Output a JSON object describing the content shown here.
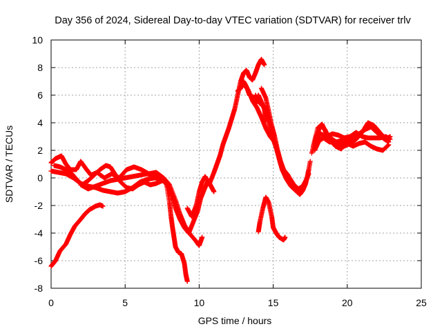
{
  "chart_data": {
    "type": "scatter",
    "title": "Day 356 of 2024, Sidereal Day-to-day VTEC variation (SDTVAR) for receiver trlv",
    "xlabel": "GPS time / hours",
    "ylabel": "SDTVAR / TECUs",
    "xlim": [
      0,
      25
    ],
    "ylim": [
      -8,
      10
    ],
    "xticks": [
      0,
      5,
      10,
      15,
      20,
      25
    ],
    "yticks": [
      -8,
      -6,
      -4,
      -2,
      0,
      2,
      4,
      6,
      8,
      10
    ],
    "grid": true,
    "marker": "plus",
    "color": "#ff0000",
    "series": [
      {
        "points": [
          [
            0.0,
            -6.4
          ],
          [
            0.3,
            -6.0
          ],
          [
            0.6,
            -5.3
          ],
          [
            1.0,
            -4.8
          ],
          [
            1.3,
            -4.1
          ],
          [
            1.6,
            -3.5
          ],
          [
            2.0,
            -3.0
          ],
          [
            2.3,
            -2.6
          ],
          [
            2.6,
            -2.3
          ],
          [
            3.0,
            -2.05
          ],
          [
            3.3,
            -1.95
          ],
          [
            3.5,
            -2.05
          ]
        ]
      },
      {
        "points": [
          [
            0.0,
            1.1
          ],
          [
            0.3,
            1.4
          ],
          [
            0.7,
            1.6
          ],
          [
            1.0,
            1.0
          ],
          [
            1.3,
            0.6
          ],
          [
            1.7,
            0.6
          ],
          [
            2.0,
            1.2
          ],
          [
            2.4,
            0.6
          ],
          [
            2.7,
            0.2
          ],
          [
            3.1,
            0.4
          ],
          [
            3.6,
            0.0
          ],
          [
            4.1,
            0.3
          ],
          [
            4.6,
            0.0
          ],
          [
            5.1,
            0.6
          ],
          [
            5.6,
            0.8
          ],
          [
            6.1,
            0.6
          ],
          [
            6.6,
            0.3
          ],
          [
            7.1,
            0.4
          ],
          [
            7.6,
            0.0
          ],
          [
            8.0,
            -0.5
          ],
          [
            8.4,
            -1.6
          ],
          [
            8.7,
            -2.6
          ],
          [
            9.0,
            -3.4
          ],
          [
            9.4,
            -4.1
          ],
          [
            9.8,
            -4.6
          ],
          [
            10.0,
            -4.9
          ],
          [
            10.2,
            -4.3
          ]
        ]
      },
      {
        "points": [
          [
            0.0,
            0.5
          ],
          [
            0.5,
            0.4
          ],
          [
            1.0,
            0.3
          ],
          [
            1.5,
            0.0
          ],
          [
            2.0,
            -0.4
          ],
          [
            2.5,
            -0.6
          ],
          [
            3.0,
            -0.7
          ],
          [
            3.5,
            -0.9
          ],
          [
            4.0,
            -1.0
          ],
          [
            4.5,
            -1.1
          ],
          [
            5.0,
            -1.0
          ],
          [
            5.5,
            -0.7
          ],
          [
            6.0,
            -0.3
          ],
          [
            6.5,
            -0.1
          ],
          [
            7.0,
            0.0
          ],
          [
            7.5,
            -0.1
          ],
          [
            7.8,
            -0.4
          ],
          [
            8.1,
            -1.2
          ],
          [
            8.4,
            -2.2
          ],
          [
            8.7,
            -3.0
          ],
          [
            9.0,
            -3.6
          ],
          [
            9.3,
            -4.0
          ],
          [
            9.6,
            -3.2
          ],
          [
            9.9,
            -2.4
          ],
          [
            10.1,
            -1.5
          ],
          [
            10.4,
            -0.7
          ],
          [
            10.6,
            -0.2
          ],
          [
            10.8,
            -0.6
          ],
          [
            11.0,
            -1.0
          ]
        ]
      },
      {
        "points": [
          [
            0.2,
            0.9
          ],
          [
            0.6,
            0.8
          ],
          [
            1.0,
            0.6
          ],
          [
            1.4,
            0.3
          ],
          [
            1.8,
            -0.2
          ],
          [
            2.1,
            -0.5
          ],
          [
            2.5,
            -0.2
          ],
          [
            2.9,
            0.2
          ],
          [
            3.3,
            0.6
          ],
          [
            3.7,
            0.9
          ],
          [
            4.0,
            0.8
          ],
          [
            4.3,
            0.3
          ],
          [
            4.7,
            -0.3
          ],
          [
            5.1,
            -0.7
          ],
          [
            5.5,
            -0.8
          ],
          [
            5.9,
            -0.5
          ],
          [
            6.3,
            -0.3
          ],
          [
            6.7,
            -0.5
          ],
          [
            7.1,
            -0.4
          ],
          [
            7.5,
            -0.2
          ],
          [
            7.8,
            -0.3
          ]
        ]
      },
      {
        "points": [
          [
            2.0,
            -0.5
          ],
          [
            2.5,
            -0.8
          ],
          [
            3.0,
            -0.6
          ],
          [
            3.5,
            -0.4
          ],
          [
            4.0,
            -0.2
          ],
          [
            4.5,
            -0.1
          ],
          [
            5.0,
            0.0
          ],
          [
            5.5,
            0.1
          ],
          [
            6.0,
            0.2
          ],
          [
            6.5,
            0.3
          ],
          [
            7.0,
            0.2
          ],
          [
            7.5,
            0.0
          ],
          [
            7.8,
            -0.5
          ],
          [
            8.0,
            -1.8
          ],
          [
            8.1,
            -2.8
          ],
          [
            8.2,
            -3.6
          ],
          [
            8.3,
            -4.3
          ],
          [
            8.4,
            -5.0
          ],
          [
            8.6,
            -5.4
          ],
          [
            8.8,
            -5.5
          ],
          [
            9.0,
            -6.2
          ],
          [
            9.1,
            -7.0
          ],
          [
            9.2,
            -7.5
          ]
        ]
      },
      {
        "points": [
          [
            9.2,
            -2.2
          ],
          [
            9.5,
            -2.8
          ],
          [
            9.8,
            -2.0
          ],
          [
            10.0,
            -1.0
          ],
          [
            10.2,
            -0.3
          ],
          [
            10.4,
            0.1
          ],
          [
            10.7,
            -0.4
          ],
          [
            11.0,
            0.4
          ],
          [
            11.2,
            1.0
          ],
          [
            11.4,
            1.6
          ],
          [
            11.6,
            2.4
          ],
          [
            11.8,
            3.0
          ],
          [
            12.0,
            3.6
          ],
          [
            12.2,
            4.3
          ],
          [
            12.4,
            5.0
          ],
          [
            12.6,
            6.0
          ],
          [
            12.8,
            7.0
          ],
          [
            13.0,
            7.6
          ],
          [
            13.2,
            7.8
          ],
          [
            13.4,
            7.3
          ],
          [
            13.6,
            7.1
          ],
          [
            13.8,
            7.6
          ],
          [
            14.0,
            8.2
          ],
          [
            14.2,
            8.6
          ],
          [
            14.4,
            8.2
          ]
        ]
      },
      {
        "points": [
          [
            12.6,
            6.3
          ],
          [
            12.8,
            6.5
          ],
          [
            13.0,
            7.0
          ],
          [
            13.2,
            6.6
          ],
          [
            13.4,
            6.0
          ],
          [
            13.6,
            5.9
          ],
          [
            13.8,
            5.4
          ],
          [
            14.0,
            6.0
          ],
          [
            14.2,
            5.5
          ],
          [
            14.4,
            5.0
          ],
          [
            14.5,
            4.2
          ]
        ]
      },
      {
        "points": [
          [
            13.0,
            6.8
          ],
          [
            13.3,
            6.4
          ],
          [
            13.6,
            5.6
          ],
          [
            13.9,
            5.1
          ],
          [
            14.2,
            4.4
          ],
          [
            14.5,
            3.6
          ],
          [
            14.8,
            3.0
          ],
          [
            15.1,
            2.6
          ],
          [
            15.3,
            1.8
          ],
          [
            15.5,
            1.0
          ],
          [
            15.8,
            0.4
          ],
          [
            16.1,
            0.0
          ],
          [
            16.4,
            -0.5
          ],
          [
            16.7,
            -0.8
          ],
          [
            17.0,
            -0.6
          ],
          [
            17.3,
            0.0
          ],
          [
            17.5,
            1.2
          ]
        ]
      },
      {
        "points": [
          [
            14.2,
            6.5
          ],
          [
            14.5,
            5.8
          ],
          [
            14.7,
            4.8
          ],
          [
            14.9,
            3.8
          ],
          [
            15.1,
            3.0
          ],
          [
            15.3,
            2.0
          ],
          [
            15.5,
            1.2
          ],
          [
            15.7,
            0.6
          ],
          [
            16.0,
            0.2
          ],
          [
            16.2,
            -0.3
          ],
          [
            16.5,
            -0.8
          ],
          [
            16.8,
            -1.0
          ],
          [
            17.1,
            -0.5
          ],
          [
            17.4,
            0.3
          ]
        ]
      },
      {
        "points": [
          [
            13.8,
            6.0
          ],
          [
            14.1,
            5.4
          ],
          [
            14.4,
            5.2
          ],
          [
            14.6,
            4.5
          ],
          [
            14.8,
            3.6
          ],
          [
            15.0,
            2.8
          ],
          [
            15.2,
            2.2
          ],
          [
            15.4,
            1.4
          ],
          [
            15.6,
            0.6
          ],
          [
            15.9,
            -0.1
          ],
          [
            16.2,
            -0.6
          ],
          [
            16.5,
            -0.9
          ],
          [
            16.8,
            -1.2
          ],
          [
            17.0,
            -0.9
          ],
          [
            17.2,
            -0.4
          ],
          [
            17.4,
            0.6
          ]
        ]
      },
      {
        "points": [
          [
            14.0,
            -3.9
          ],
          [
            14.1,
            -3.2
          ],
          [
            14.3,
            -2.2
          ],
          [
            14.5,
            -1.4
          ],
          [
            14.7,
            -1.8
          ],
          [
            14.9,
            -2.8
          ],
          [
            15.0,
            -3.6
          ],
          [
            15.2,
            -4.0
          ],
          [
            15.4,
            -4.3
          ],
          [
            15.7,
            -4.5
          ],
          [
            15.8,
            -4.3
          ]
        ]
      },
      {
        "points": [
          [
            17.6,
            1.8
          ],
          [
            17.9,
            3.0
          ],
          [
            18.2,
            3.8
          ],
          [
            18.5,
            3.5
          ],
          [
            18.8,
            2.8
          ],
          [
            19.2,
            2.3
          ],
          [
            19.6,
            2.1
          ],
          [
            20.0,
            2.7
          ],
          [
            20.4,
            3.0
          ],
          [
            20.8,
            3.2
          ],
          [
            21.2,
            3.5
          ],
          [
            21.6,
            3.7
          ],
          [
            22.0,
            3.3
          ],
          [
            22.4,
            2.9
          ],
          [
            22.8,
            2.6
          ]
        ]
      },
      {
        "points": [
          [
            17.7,
            2.3
          ],
          [
            18.0,
            3.6
          ],
          [
            18.3,
            3.9
          ],
          [
            18.6,
            3.2
          ],
          [
            19.0,
            2.8
          ],
          [
            19.4,
            2.5
          ],
          [
            19.8,
            2.3
          ],
          [
            20.2,
            2.5
          ],
          [
            20.6,
            2.8
          ],
          [
            21.0,
            3.3
          ],
          [
            21.4,
            4.0
          ],
          [
            21.8,
            3.8
          ],
          [
            22.2,
            3.3
          ],
          [
            22.6,
            2.8
          ],
          [
            22.9,
            3.0
          ]
        ]
      },
      {
        "points": [
          [
            17.8,
            2.0
          ],
          [
            18.1,
            2.7
          ],
          [
            18.4,
            2.9
          ],
          [
            18.8,
            2.6
          ],
          [
            19.2,
            2.6
          ],
          [
            19.6,
            2.7
          ],
          [
            20.0,
            2.5
          ],
          [
            20.4,
            2.3
          ],
          [
            20.8,
            2.5
          ],
          [
            21.2,
            2.6
          ],
          [
            21.6,
            2.3
          ],
          [
            22.0,
            2.1
          ],
          [
            22.4,
            2.0
          ],
          [
            22.8,
            2.4
          ]
        ]
      },
      {
        "points": [
          [
            17.8,
            2.6
          ],
          [
            18.2,
            3.2
          ],
          [
            18.6,
            3.0
          ],
          [
            19.0,
            3.2
          ],
          [
            19.4,
            3.1
          ],
          [
            19.8,
            2.9
          ],
          [
            20.2,
            3.0
          ],
          [
            20.6,
            3.3
          ],
          [
            21.0,
            3.0
          ],
          [
            21.4,
            2.9
          ],
          [
            21.8,
            2.9
          ],
          [
            22.2,
            2.9
          ],
          [
            22.6,
            3.0
          ],
          [
            22.9,
            2.8
          ]
        ]
      }
    ]
  }
}
